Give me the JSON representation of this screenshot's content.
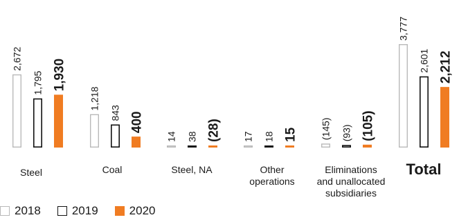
{
  "chart_data": {
    "type": "bar",
    "title": "",
    "xlabel": "",
    "ylabel": "",
    "grid": false,
    "legend_position": "bottom-left",
    "categories": [
      "Steel",
      "Coal",
      "Steel, NA",
      "Other\noperations",
      "Eliminations\nand unallocated\nsubsidiaries",
      "Total"
    ],
    "series": [
      {
        "name": "2018",
        "values": [
          2672,
          1218,
          14,
          17,
          -145,
          3777
        ],
        "labels": [
          "2,672",
          "1,218",
          "14",
          "17",
          "(145)",
          "3,777"
        ],
        "color": "#b9b9b9"
      },
      {
        "name": "2019",
        "values": [
          1795,
          843,
          38,
          18,
          -93,
          2601
        ],
        "labels": [
          "1,795",
          "843",
          "38",
          "18",
          "(93)",
          "2,601"
        ],
        "color": "#111111"
      },
      {
        "name": "2020",
        "values": [
          1930,
          400,
          -28,
          15,
          -105,
          2212
        ],
        "labels": [
          "1,930",
          "400",
          "(28)",
          "15",
          "(105)",
          "2,212"
        ],
        "color": "#f07c22"
      }
    ]
  }
}
